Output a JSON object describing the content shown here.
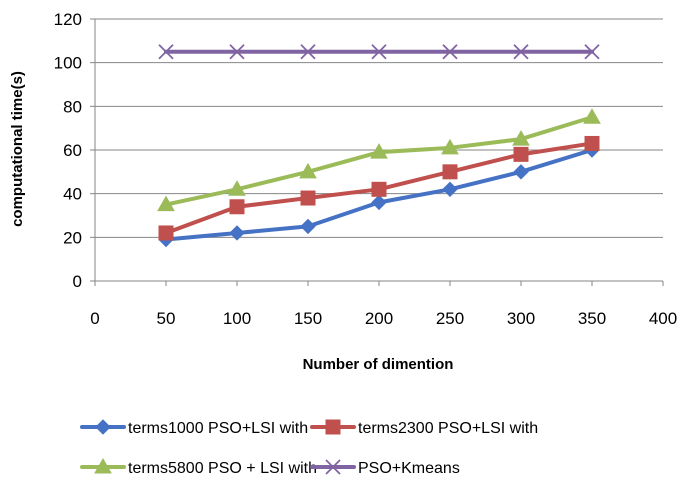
{
  "chart_data": {
    "type": "line",
    "title": "",
    "xlabel": "Number of dimention",
    "ylabel": "computational time(s)",
    "xlim": [
      0,
      400
    ],
    "ylim": [
      0,
      120
    ],
    "x_ticks": [
      0,
      50,
      100,
      150,
      200,
      250,
      300,
      350,
      400
    ],
    "y_ticks": [
      0,
      20,
      40,
      60,
      80,
      100,
      120
    ],
    "grid": true,
    "legend_position": "bottom",
    "x": [
      50,
      100,
      150,
      200,
      250,
      300,
      350
    ],
    "series": [
      {
        "name": "terms1000 PSO+LSI with",
        "color": "#4572C4",
        "marker": "diamond",
        "values": [
          19,
          22,
          25,
          36,
          42,
          50,
          60
        ]
      },
      {
        "name": "terms2300 PSO+LSI with",
        "color": "#C0504D",
        "marker": "square",
        "values": [
          22,
          34,
          38,
          42,
          50,
          58,
          63
        ]
      },
      {
        "name": "terms5800 PSO + LSI with",
        "color": "#9BBB59",
        "marker": "triangle",
        "values": [
          35,
          42,
          50,
          59,
          61,
          65,
          75
        ]
      },
      {
        "name": "PSO+Kmeans",
        "color": "#8064A2",
        "marker": "x",
        "values": [
          105,
          105,
          105,
          105,
          105,
          105,
          105
        ]
      }
    ]
  }
}
